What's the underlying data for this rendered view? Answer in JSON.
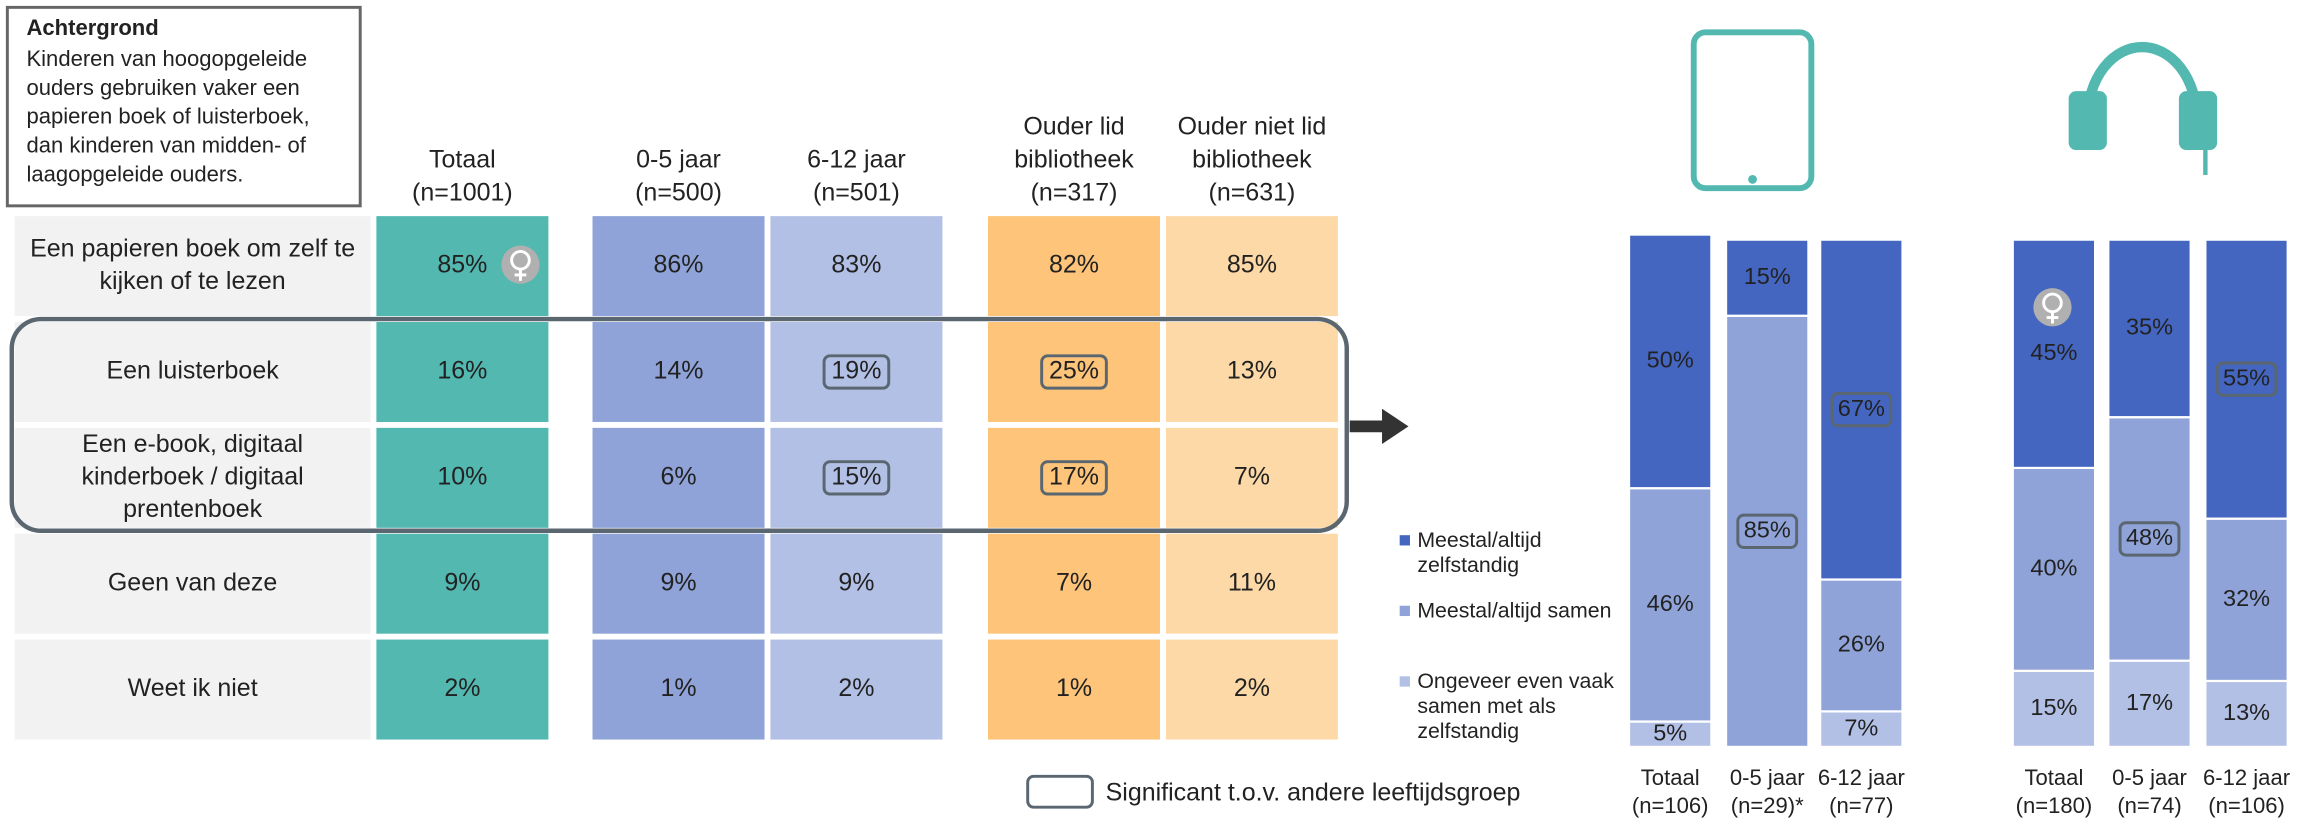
{
  "note": {
    "title": "Achtergrond",
    "lines": [
      "Kinderen van hoogopgeleide",
      "ouders gebruiken vaker een",
      "papieren boek of luisterboek,",
      "dan kinderen van midden- of",
      "laagopgeleide ouders."
    ]
  },
  "table": {
    "columns": [
      {
        "header": [
          "Totaal",
          "(n=1001)"
        ],
        "color": "#52b8b0"
      },
      {
        "header": [
          "0-5 jaar",
          "(n=500)"
        ],
        "color": "#8fa3d8"
      },
      {
        "header": [
          "6-12 jaar",
          "(n=501)"
        ],
        "color": "#b3c0e6"
      },
      {
        "header": [
          "Ouder lid",
          "bibliotheek",
          "(n=317)"
        ],
        "color": "#fdc47a"
      },
      {
        "header": [
          "Ouder niet lid",
          "bibliotheek",
          "(n=631)"
        ],
        "color": "#fdd9a8"
      }
    ],
    "rows": [
      {
        "label": [
          "Een papieren boek om zelf te",
          "kijken of te lezen"
        ],
        "cells": [
          "85%",
          "86%",
          "83%",
          "82%",
          "85%"
        ],
        "significant": [
          false,
          false,
          false,
          false,
          false
        ]
      },
      {
        "label": [
          "Een luisterboek"
        ],
        "cells": [
          "16%",
          "14%",
          "19%",
          "25%",
          "13%"
        ],
        "significant": [
          false,
          false,
          true,
          true,
          false
        ]
      },
      {
        "label": [
          "Een e-book, digitaal",
          "kinderboek / digitaal",
          "prentenboek"
        ],
        "cells": [
          "10%",
          "6%",
          "15%",
          "17%",
          "7%"
        ],
        "significant": [
          false,
          false,
          true,
          true,
          false
        ]
      },
      {
        "label": [
          "Geen van deze"
        ],
        "cells": [
          "9%",
          "9%",
          "9%",
          "7%",
          "11%"
        ],
        "significant": [
          false,
          false,
          false,
          false,
          false
        ]
      },
      {
        "label": [
          "Weet ik niet"
        ],
        "cells": [
          "2%",
          "1%",
          "2%",
          "1%",
          "2%"
        ],
        "significant": [
          false,
          false,
          false,
          false,
          false
        ]
      }
    ]
  },
  "significance_legend": "Significant t.o.v. andere leeftijdsgroep",
  "chart_data": [
    {
      "type": "stacked_bar",
      "categories": [
        "Totaal (n=106)",
        "0-5 jaar (n=29)*",
        "6-12 jaar (n=77)"
      ],
      "ylim": [
        0,
        100
      ],
      "series": [
        {
          "name": "Meestal/altijd zelfstandig",
          "color": "#4466c0",
          "values": [
            50,
            15,
            67
          ],
          "value_labels": [
            "50%",
            "15%",
            "67%"
          ],
          "significant": [
            false,
            false,
            true
          ]
        },
        {
          "name": "Meestal/altijd samen",
          "color": "#8fa3d8",
          "values": [
            46,
            85,
            26
          ],
          "value_labels": [
            "46%",
            "85%",
            "26%"
          ],
          "significant": [
            false,
            true,
            false
          ]
        },
        {
          "name": "Ongeveer even vaak samen met als zelfstandig",
          "color": "#b3c0e6",
          "values": [
            5,
            null,
            7
          ],
          "value_labels": [
            "5%",
            null,
            "7%"
          ],
          "significant": [
            false,
            false,
            false
          ]
        }
      ]
    },
    {
      "type": "stacked_bar",
      "categories": [
        "Totaal (n=180)",
        "0-5 jaar (n=74)",
        "6-12 jaar (n=106)"
      ],
      "ylim": [
        0,
        100
      ],
      "series": [
        {
          "color": "#4466c0",
          "values": [
            45,
            35,
            55
          ],
          "value_labels": [
            "45%",
            "35%",
            "55%"
          ],
          "significant": [
            false,
            false,
            true
          ]
        },
        {
          "color": "#8fa3d8",
          "values": [
            40,
            48,
            32
          ],
          "value_labels": [
            "40%",
            "48%",
            "32%"
          ],
          "significant": [
            false,
            true,
            false
          ]
        },
        {
          "color": "#b3c0e6",
          "values": [
            15,
            17,
            13
          ],
          "value_labels": [
            "15%",
            "17%",
            "13%"
          ],
          "significant": [
            false,
            false,
            false
          ]
        }
      ]
    }
  ]
}
